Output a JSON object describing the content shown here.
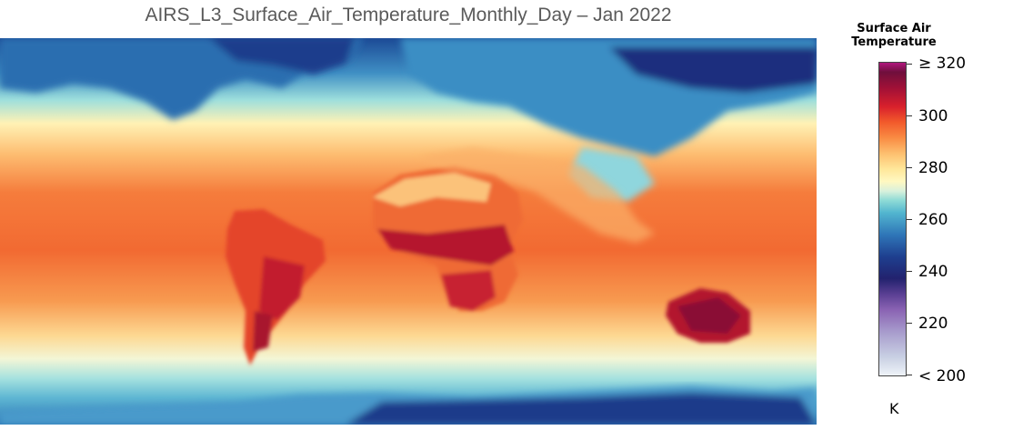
{
  "title": "AIRS_L3_Surface_Air_Temperature_Monthly_Day – Jan 2022",
  "colorbar": {
    "title_line1": "Surface Air",
    "title_line2": "Temperature",
    "unit": "K",
    "min": 200,
    "max": 320,
    "labels": [
      "≥ 320",
      "300",
      "280",
      "260",
      "240",
      "220",
      "< 200"
    ],
    "colors": {
      "cold": "#22226e",
      "cool": "#52b5cf",
      "mild": "#fff8c2",
      "warm": "#f98b43",
      "hot": "#d8202c",
      "extreme": "#6f0f3c"
    }
  }
}
